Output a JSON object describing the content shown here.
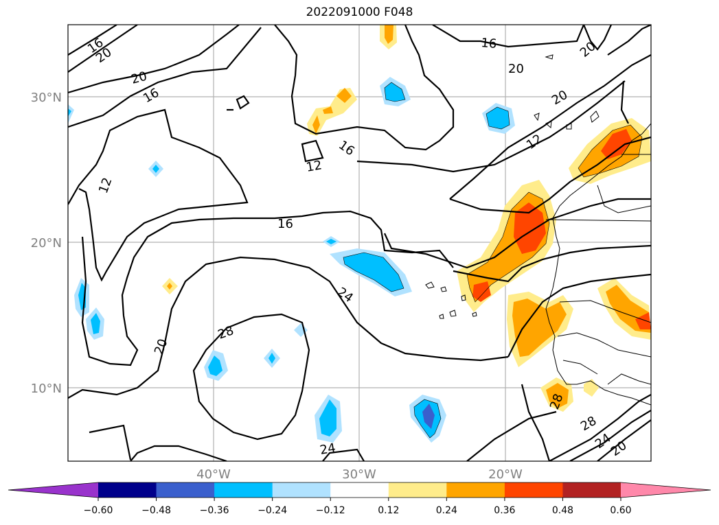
{
  "title": "2022091000 F048",
  "map": {
    "lat_labels": [
      "30°N",
      "20°N",
      "10°N"
    ],
    "lon_labels": [
      "40°W",
      "30°W",
      "20°W"
    ],
    "contour_labels": [
      "16",
      "20",
      "20",
      "16",
      "12",
      "12",
      "16",
      "20",
      "12",
      "16",
      "16",
      "20",
      "20",
      "24",
      "28",
      "24",
      "28",
      "28",
      "24",
      "20",
      "20"
    ]
  },
  "colorbar": {
    "tick_labels": [
      "−0.60",
      "−0.48",
      "−0.36",
      "−0.24",
      "−0.12",
      "0.12",
      "0.24",
      "0.36",
      "0.48",
      "0.60"
    ],
    "colors": [
      "#9933cc",
      "#00008b",
      "#3a5fcd",
      "#00bfff",
      "#b0e2ff",
      "#ffffff",
      "#ffec8b",
      "#ffa500",
      "#ff4500",
      "#b22222",
      "#ff88aa"
    ]
  }
}
